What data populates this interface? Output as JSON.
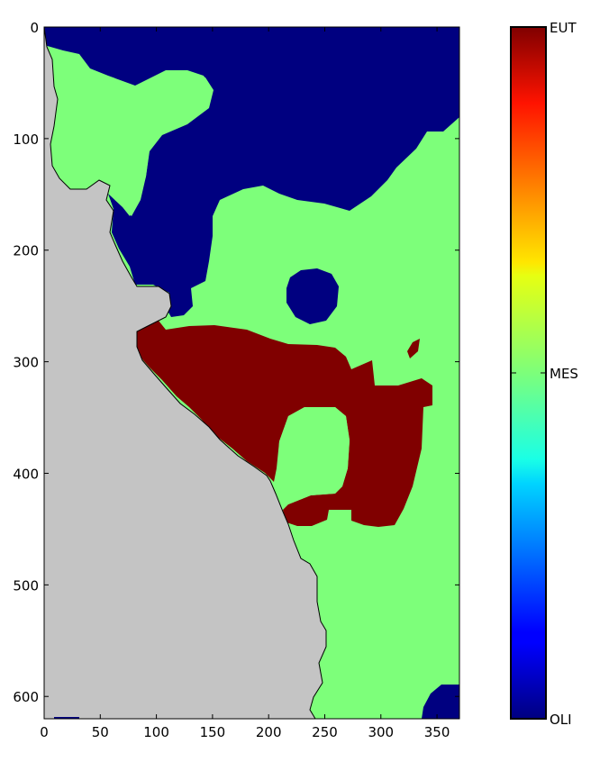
{
  "chart_data": {
    "type": "heatmap",
    "title": "",
    "xlabel": "",
    "ylabel": "",
    "xlim": [
      0,
      370
    ],
    "ylim": [
      620,
      0
    ],
    "x_ticks": [
      "0",
      "50",
      "100",
      "150",
      "200",
      "250",
      "300",
      "350"
    ],
    "y_ticks": [
      "0",
      "100",
      "200",
      "300",
      "400",
      "500",
      "600"
    ],
    "categories": [
      {
        "label": "OLI",
        "color": "#000080"
      },
      {
        "label": "MES",
        "color": "#7dff7a"
      },
      {
        "label": "EUT",
        "color": "#800000"
      }
    ],
    "land_color": "#c4c4c4",
    "colorbar": {
      "colormap": "jet",
      "tick_labels": [
        "OLI",
        "MES",
        "EUT"
      ],
      "tick_values": [
        0,
        0.5,
        1
      ]
    },
    "grid": false
  }
}
